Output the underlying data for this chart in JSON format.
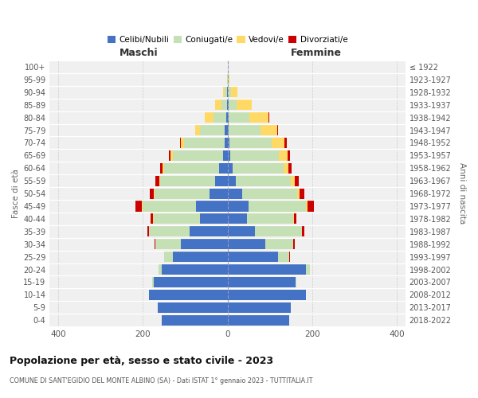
{
  "age_groups": [
    "0-4",
    "5-9",
    "10-14",
    "15-19",
    "20-24",
    "25-29",
    "30-34",
    "35-39",
    "40-44",
    "45-49",
    "50-54",
    "55-59",
    "60-64",
    "65-69",
    "70-74",
    "75-79",
    "80-84",
    "85-89",
    "90-94",
    "95-99",
    "100+"
  ],
  "birth_years": [
    "2018-2022",
    "2013-2017",
    "2008-2012",
    "2003-2007",
    "1998-2002",
    "1993-1997",
    "1988-1992",
    "1983-1987",
    "1978-1982",
    "1973-1977",
    "1968-1972",
    "1963-1967",
    "1958-1962",
    "1953-1957",
    "1948-1952",
    "1943-1947",
    "1938-1942",
    "1933-1937",
    "1928-1932",
    "1923-1927",
    "≤ 1922"
  ],
  "males": {
    "celibi": [
      155,
      165,
      185,
      175,
      155,
      130,
      110,
      90,
      65,
      75,
      42,
      30,
      20,
      10,
      7,
      6,
      3,
      2,
      1,
      0,
      0
    ],
    "coniugati": [
      0,
      0,
      0,
      3,
      8,
      20,
      60,
      95,
      110,
      125,
      130,
      130,
      130,
      120,
      95,
      60,
      30,
      12,
      5,
      1,
      0
    ],
    "vedovi": [
      0,
      0,
      0,
      0,
      0,
      0,
      0,
      0,
      1,
      2,
      2,
      2,
      4,
      5,
      8,
      10,
      20,
      15,
      5,
      1,
      0
    ],
    "divorziati": [
      0,
      0,
      0,
      0,
      0,
      0,
      2,
      5,
      5,
      15,
      10,
      8,
      5,
      3,
      2,
      1,
      0,
      0,
      0,
      0,
      0
    ]
  },
  "females": {
    "nubili": [
      145,
      150,
      185,
      160,
      185,
      120,
      90,
      65,
      45,
      50,
      35,
      20,
      12,
      7,
      5,
      3,
      2,
      2,
      1,
      0,
      0
    ],
    "coniugate": [
      0,
      0,
      0,
      3,
      10,
      25,
      65,
      110,
      110,
      135,
      130,
      130,
      120,
      115,
      100,
      75,
      50,
      20,
      8,
      2,
      0
    ],
    "vedove": [
      0,
      0,
      0,
      0,
      0,
      0,
      0,
      1,
      2,
      4,
      6,
      8,
      12,
      20,
      30,
      40,
      45,
      35,
      15,
      2,
      0
    ],
    "divorziate": [
      0,
      0,
      0,
      0,
      0,
      2,
      3,
      5,
      5,
      15,
      10,
      10,
      8,
      5,
      5,
      2,
      2,
      0,
      0,
      0,
      0
    ]
  },
  "colors": {
    "celibi": "#4472c4",
    "coniugati": "#c5e0b4",
    "vedovi": "#ffd966",
    "divorziati": "#cc0000"
  },
  "title": "Popolazione per età, sesso e stato civile - 2023",
  "subtitle": "COMUNE DI SANT'EGIDIO DEL MONTE ALBINO (SA) - Dati ISTAT 1° gennaio 2023 - TUTTITALIA.IT",
  "label_maschi": "Maschi",
  "label_femmine": "Femmine",
  "ylabel_left": "Fasce di età",
  "ylabel_right": "Anni di nascita",
  "xlim": 420,
  "legend_labels": [
    "Celibi/Nubili",
    "Coniugati/e",
    "Vedovi/e",
    "Divorziati/e"
  ],
  "bg_color": "#ffffff",
  "plot_bg": "#f0f0f0",
  "grid_color": "#cccccc"
}
